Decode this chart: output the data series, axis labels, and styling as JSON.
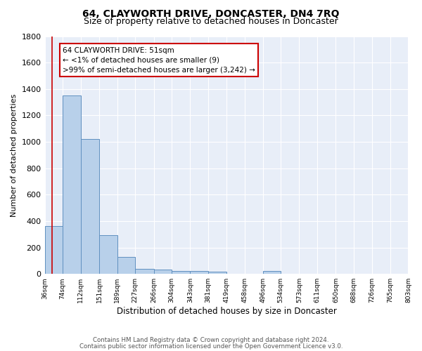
{
  "title": "64, CLAYWORTH DRIVE, DONCASTER, DN4 7RQ",
  "subtitle": "Size of property relative to detached houses in Doncaster",
  "xlabel": "Distribution of detached houses by size in Doncaster",
  "ylabel": "Number of detached properties",
  "footer_line1": "Contains HM Land Registry data © Crown copyright and database right 2024.",
  "footer_line2": "Contains public sector information licensed under the Open Government Licence v3.0.",
  "annotation_line1": "64 CLAYWORTH DRIVE: 51sqm",
  "annotation_line2": "← <1% of detached houses are smaller (9)",
  "annotation_line3": ">99% of semi-detached houses are larger (3,242) →",
  "bar_edges": [
    36,
    74,
    112,
    151,
    189,
    227,
    266,
    304,
    343,
    381,
    419,
    458,
    496,
    534,
    573,
    611,
    650,
    688,
    726,
    765,
    803
  ],
  "bar_heights": [
    360,
    1350,
    1020,
    295,
    130,
    40,
    35,
    25,
    20,
    15,
    0,
    0,
    20,
    0,
    0,
    0,
    0,
    0,
    0,
    0
  ],
  "bar_color": "#b8d0ea",
  "bar_edgecolor": "#6090c0",
  "property_line_x": 51,
  "property_line_color": "#cc0000",
  "annotation_box_edgecolor": "#cc0000",
  "ylim": [
    0,
    1800
  ],
  "plot_bg_color": "#e8eef8",
  "grid_color": "#ffffff",
  "title_fontsize": 10,
  "subtitle_fontsize": 9
}
